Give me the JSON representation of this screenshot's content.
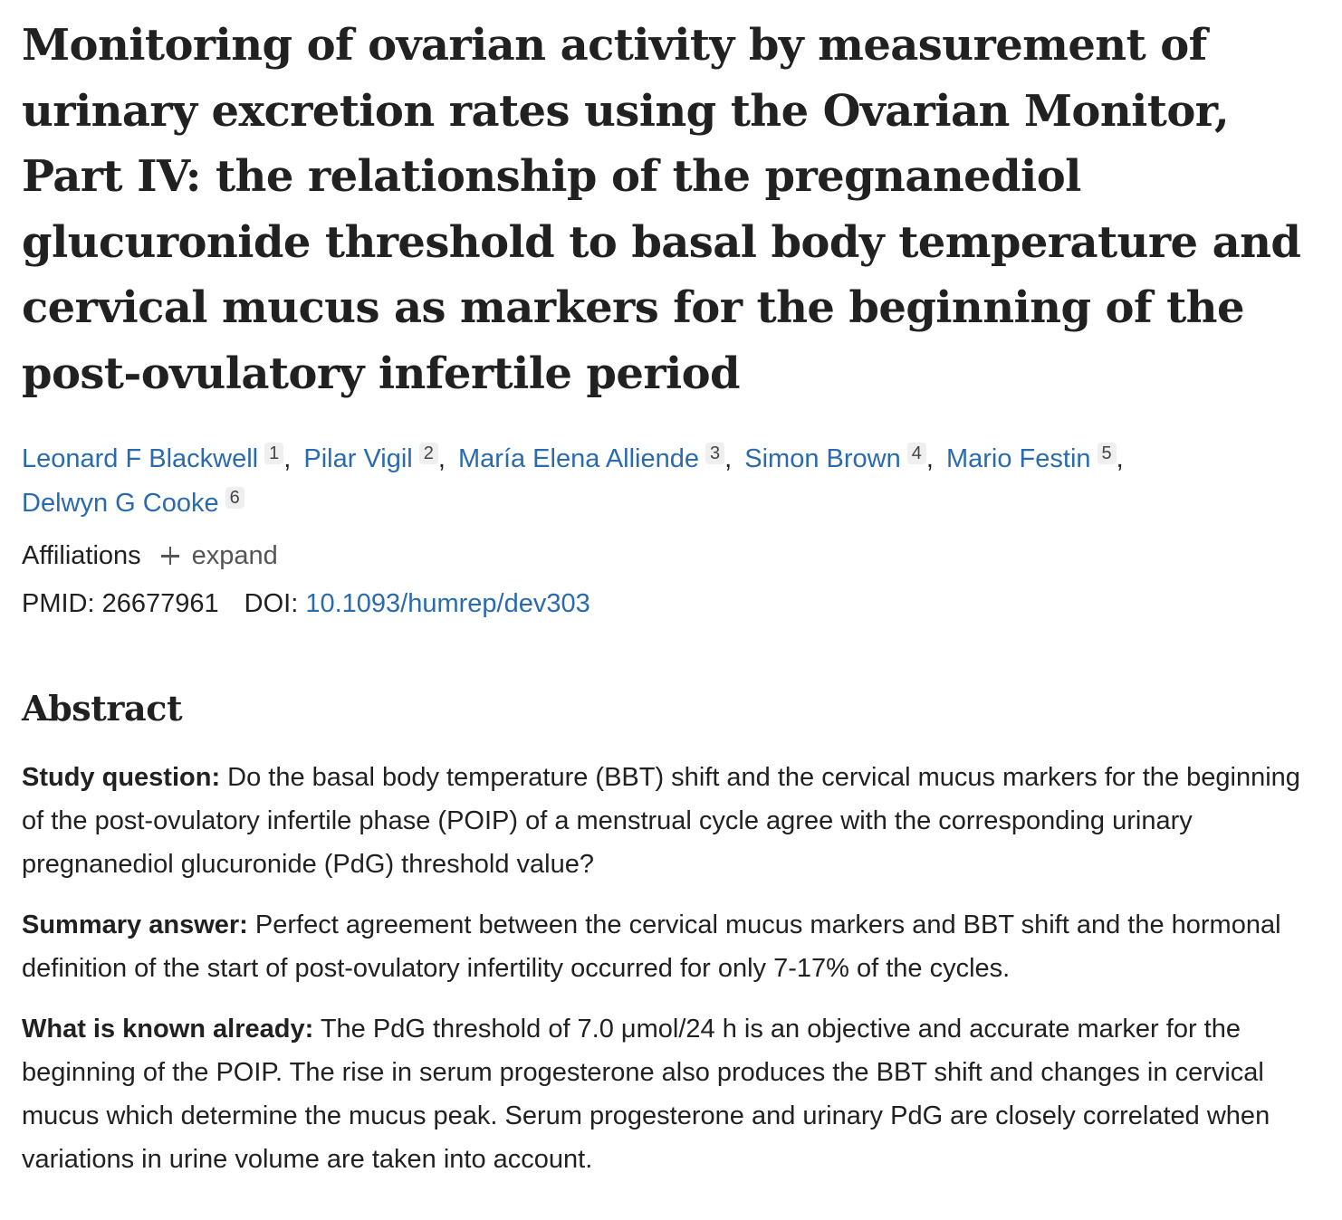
{
  "article": {
    "title": "Monitoring of ovarian activity by measurement of urinary excretion rates using the Ovarian Monitor, Part IV: the relationship of the pregnanediol glucuronide threshold to basal body temperature and cervical mucus as markers for the beginning of the post-ovulatory infertile period",
    "authors": [
      {
        "name": "Leonard F Blackwell",
        "aff": "1"
      },
      {
        "name": "Pilar Vigil",
        "aff": "2"
      },
      {
        "name": "María Elena Alliende",
        "aff": "3"
      },
      {
        "name": "Simon Brown",
        "aff": "4"
      },
      {
        "name": "Mario Festin",
        "aff": "5"
      },
      {
        "name": "Delwyn G Cooke",
        "aff": "6"
      }
    ],
    "separator": ",",
    "affiliations_label": "Affiliations",
    "expand_label": "expand",
    "pmid_label": "PMID:",
    "pmid": "26677961",
    "doi_label": "DOI:",
    "doi": "10.1093/humrep/dev303"
  },
  "abstract": {
    "heading": "Abstract",
    "sections": [
      {
        "label": "Study question:",
        "text": "Do the basal body temperature (BBT) shift and the cervical mucus markers for the beginning of the post-ovulatory infertile phase (POIP) of a menstrual cycle agree with the corresponding urinary pregnanediol glucuronide (PdG) threshold value?"
      },
      {
        "label": "Summary answer:",
        "text": "Perfect agreement between the cervical mucus markers and BBT shift and the hormonal definition of the start of post-ovulatory infertility occurred for only 7-17% of the cycles."
      },
      {
        "label": "What is known already:",
        "text": "The PdG threshold of 7.0 μmol/24 h is an objective and accurate marker for the beginning of the POIP. The rise in serum progesterone also produces the BBT shift and changes in cervical mucus which determine the mucus peak. Serum progesterone and urinary PdG are closely correlated when variations in urine volume are taken into account."
      }
    ]
  }
}
